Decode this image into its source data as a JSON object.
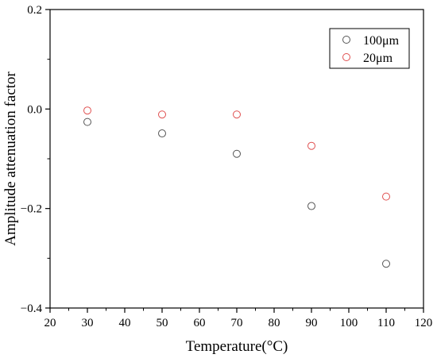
{
  "chart_data": {
    "type": "scatter",
    "title": "",
    "xlabel": "Temperature(°C)",
    "ylabel": "Amplitude attenuation factor",
    "xlim": [
      20,
      120
    ],
    "ylim": [
      -0.4,
      0.2
    ],
    "x_ticks": [
      20,
      30,
      40,
      50,
      60,
      70,
      80,
      90,
      100,
      110,
      120
    ],
    "x_tick_labels": [
      "20",
      "30",
      "40",
      "50",
      "60",
      "70",
      "80",
      "90",
      "100",
      "110",
      "120"
    ],
    "y_ticks": [
      -0.4,
      -0.2,
      0.0,
      0.2
    ],
    "y_tick_labels": [
      "−0.4",
      "−0.2",
      "0.0",
      "0.2"
    ],
    "grid": false,
    "legend_position": "top-right",
    "series": [
      {
        "name": "100μm",
        "color": "#555555",
        "marker": "open-circle",
        "points": [
          {
            "x": 30,
            "y": -0.026
          },
          {
            "x": 50,
            "y": -0.049
          },
          {
            "x": 70,
            "y": -0.09
          },
          {
            "x": 90,
            "y": -0.195
          },
          {
            "x": 110,
            "y": -0.311
          }
        ]
      },
      {
        "name": "20μm",
        "color": "#e05050",
        "marker": "open-circle",
        "points": [
          {
            "x": 30,
            "y": -0.003
          },
          {
            "x": 50,
            "y": -0.011
          },
          {
            "x": 70,
            "y": -0.011
          },
          {
            "x": 90,
            "y": -0.074
          },
          {
            "x": 110,
            "y": -0.176
          }
        ]
      }
    ]
  }
}
